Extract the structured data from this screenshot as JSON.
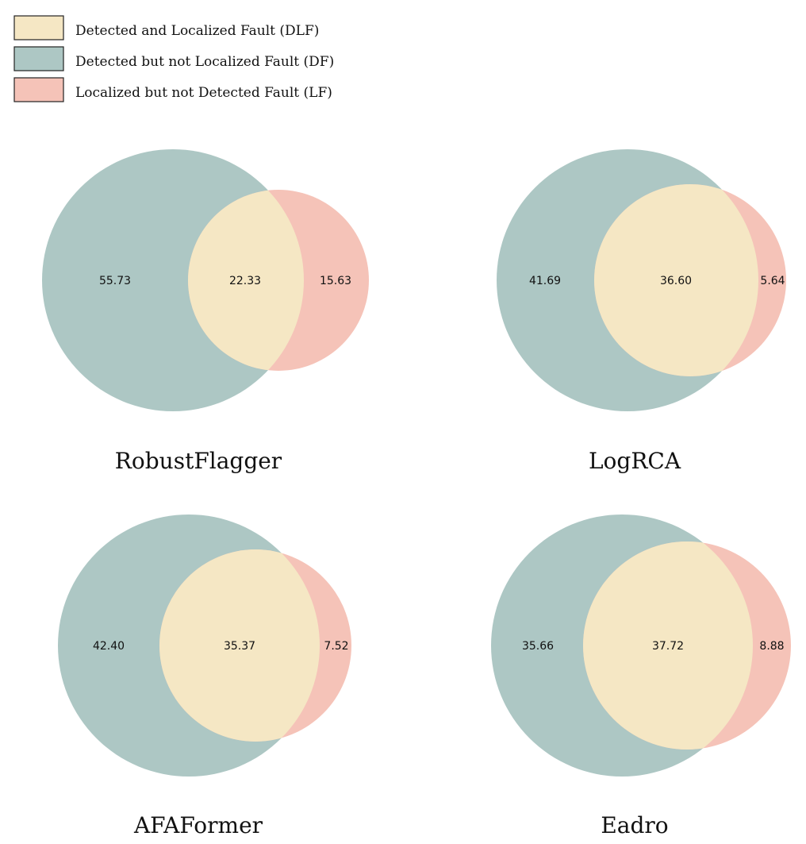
{
  "legend": [
    {
      "label": "Detected and Localized Fault (DLF)",
      "color": "#f5e7c4"
    },
    {
      "label": "Detected but not Localized Fault (DF)",
      "color": "#adc7c4"
    },
    {
      "label": "Localized but not Detected Fault (LF)",
      "color": "#f5c3b8"
    }
  ],
  "chart_data": [
    {
      "type": "venn",
      "title": "RobustFlagger",
      "sets": [
        "Detected",
        "Localized"
      ],
      "regions": {
        "DF": 55.73,
        "DLF": 22.33,
        "LF": 15.63
      },
      "labels": {
        "DF": "55.73",
        "DLF": "22.33",
        "LF": "15.63"
      }
    },
    {
      "type": "venn",
      "title": "LogRCA",
      "sets": [
        "Detected",
        "Localized"
      ],
      "regions": {
        "DF": 41.69,
        "DLF": 36.6,
        "LF": 5.64
      },
      "labels": {
        "DF": "41.69",
        "DLF": "36.60",
        "LF": "5.64"
      }
    },
    {
      "type": "venn",
      "title": "AFAFormer",
      "sets": [
        "Detected",
        "Localized"
      ],
      "regions": {
        "DF": 42.4,
        "DLF": 35.37,
        "LF": 7.52
      },
      "labels": {
        "DF": "42.40",
        "DLF": "35.37",
        "LF": "7.52"
      }
    },
    {
      "type": "venn",
      "title": "Eadro",
      "sets": [
        "Detected",
        "Localized"
      ],
      "regions": {
        "DF": 35.66,
        "DLF": 37.72,
        "LF": 8.88
      },
      "labels": {
        "DF": "35.66",
        "DLF": "37.72",
        "LF": "8.88"
      }
    }
  ]
}
